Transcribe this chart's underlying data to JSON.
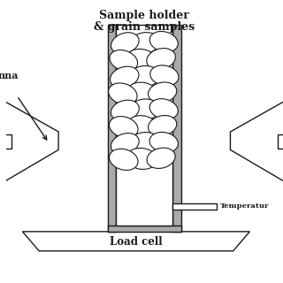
{
  "bg_color": "#ffffff",
  "line_color": "#1a1a1a",
  "gray_color": "#aaaaaa",
  "title1": "Sample holder",
  "title2": "& grain samples",
  "label_antenna": "nna",
  "label_temperature": "Temperatur",
  "label_loadcell": "Load cell",
  "grain_ellipses": [
    [
      0.5,
      0.855,
      0.055,
      0.038,
      10
    ],
    [
      0.57,
      0.86,
      0.052,
      0.036,
      -15
    ],
    [
      0.43,
      0.855,
      0.052,
      0.036,
      20
    ],
    [
      0.49,
      0.795,
      0.055,
      0.038,
      -10
    ],
    [
      0.56,
      0.798,
      0.053,
      0.037,
      15
    ],
    [
      0.425,
      0.792,
      0.052,
      0.036,
      -20
    ],
    [
      0.5,
      0.735,
      0.055,
      0.038,
      5
    ],
    [
      0.572,
      0.738,
      0.052,
      0.036,
      -12
    ],
    [
      0.428,
      0.732,
      0.053,
      0.037,
      18
    ],
    [
      0.492,
      0.675,
      0.055,
      0.038,
      -8
    ],
    [
      0.565,
      0.677,
      0.052,
      0.036,
      12
    ],
    [
      0.422,
      0.672,
      0.053,
      0.037,
      -18
    ],
    [
      0.5,
      0.615,
      0.055,
      0.038,
      6
    ],
    [
      0.57,
      0.617,
      0.052,
      0.036,
      -14
    ],
    [
      0.43,
      0.612,
      0.052,
      0.036,
      16
    ],
    [
      0.493,
      0.555,
      0.055,
      0.038,
      -9
    ],
    [
      0.565,
      0.557,
      0.052,
      0.036,
      13
    ],
    [
      0.425,
      0.552,
      0.053,
      0.037,
      -17
    ],
    [
      0.5,
      0.495,
      0.055,
      0.038,
      7
    ],
    [
      0.57,
      0.497,
      0.052,
      0.036,
      -11
    ],
    [
      0.43,
      0.492,
      0.052,
      0.036,
      19
    ],
    [
      0.49,
      0.438,
      0.055,
      0.038,
      -7
    ],
    [
      0.56,
      0.44,
      0.052,
      0.036,
      14
    ],
    [
      0.425,
      0.435,
      0.053,
      0.037,
      -16
    ]
  ]
}
